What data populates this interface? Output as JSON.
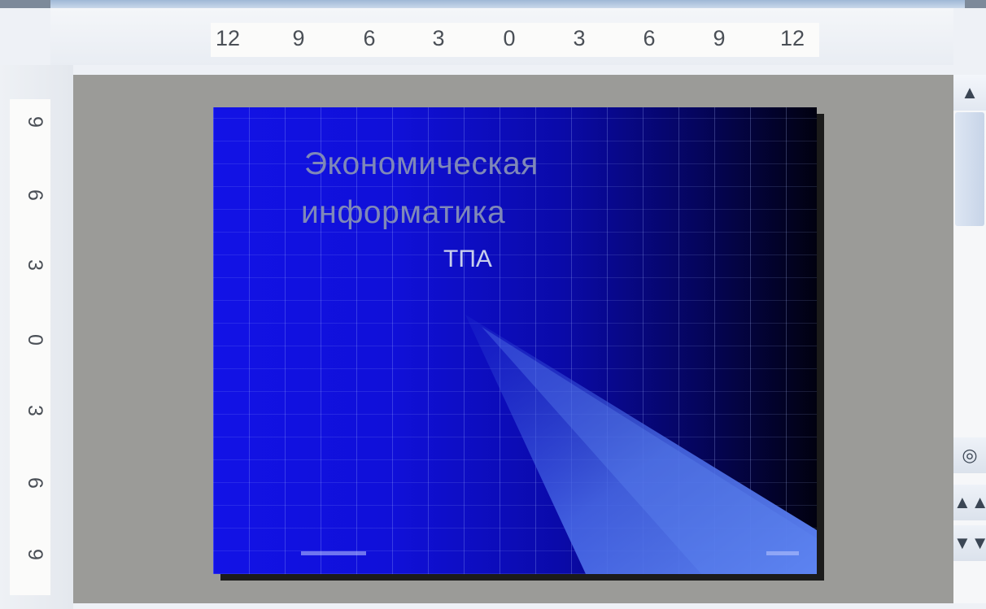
{
  "horizontal_ruler": {
    "ticks": [
      "12",
      "9",
      "6",
      "3",
      "0",
      "3",
      "6",
      "9",
      "12"
    ]
  },
  "vertical_ruler": {
    "ticks": [
      "9",
      "6",
      "3",
      "0",
      "3",
      "6",
      "9"
    ]
  },
  "slide": {
    "title_line1": "Экономическая",
    "title_line2": "информатика",
    "subtitle": "ТПА"
  },
  "scrollbar": {
    "up_icon": "▲",
    "next_icon": "◎",
    "prev_page_icon": "▲▲",
    "next_page_icon": "▼▼"
  },
  "colors": {
    "slide_bg_left": "#1212e6",
    "slide_bg_right": "#010110",
    "canvas": "#9b9b98"
  }
}
